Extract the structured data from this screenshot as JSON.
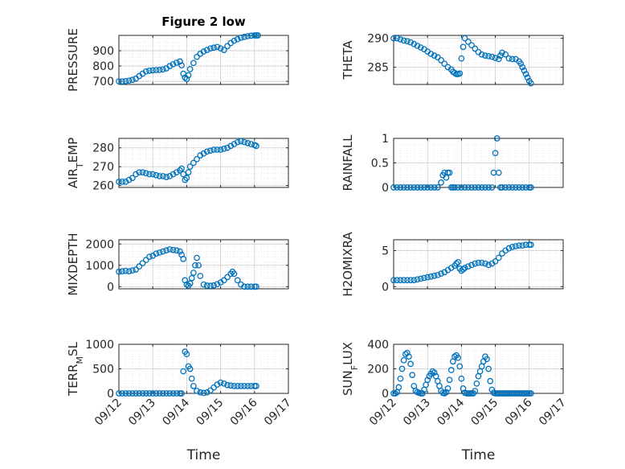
{
  "chart_data": [
    {
      "type": "scatter",
      "title": "Figure 2 low",
      "ylabel": "PRESSURE",
      "ylim": [
        680,
        1000
      ],
      "yticks": [
        700,
        800,
        900
      ],
      "xlim": [
        0,
        5
      ],
      "xticks": [
        "09/12",
        "09/13",
        "09/14",
        "09/15",
        "09/16",
        "09/17"
      ],
      "color": "#0072BD",
      "grid": true,
      "minor_grid": true,
      "x": [
        0.0,
        0.1,
        0.2,
        0.3,
        0.4,
        0.5,
        0.6,
        0.7,
        0.8,
        0.9,
        1.0,
        1.1,
        1.2,
        1.3,
        1.4,
        1.5,
        1.6,
        1.7,
        1.8,
        1.85,
        1.9,
        1.95,
        2.0,
        2.05,
        2.1,
        2.2,
        2.3,
        2.4,
        2.5,
        2.6,
        2.7,
        2.8,
        2.9,
        3.0,
        3.1,
        3.2,
        3.3,
        3.4,
        3.5,
        3.6,
        3.7,
        3.8,
        3.9,
        4.0,
        4.05,
        4.1
      ],
      "y": [
        700,
        700,
        702,
        705,
        710,
        718,
        735,
        750,
        765,
        770,
        772,
        774,
        775,
        778,
        785,
        800,
        812,
        822,
        830,
        805,
        750,
        725,
        715,
        740,
        780,
        820,
        860,
        880,
        895,
        905,
        915,
        920,
        925,
        915,
        905,
        930,
        950,
        965,
        975,
        985,
        990,
        995,
        998,
        1000,
        1000,
        1000
      ]
    },
    {
      "type": "scatter",
      "title": "",
      "ylabel": "THETA",
      "ylim": [
        282,
        290.5
      ],
      "yticks": [
        285,
        290
      ],
      "xlim": [
        0,
        5
      ],
      "xticks": [
        "09/12",
        "09/13",
        "09/14",
        "09/15",
        "09/16",
        "09/17"
      ],
      "color": "#0072BD",
      "grid": true,
      "minor_grid": true,
      "x": [
        0.0,
        0.1,
        0.2,
        0.3,
        0.4,
        0.5,
        0.6,
        0.7,
        0.8,
        0.9,
        1.0,
        1.1,
        1.2,
        1.3,
        1.4,
        1.5,
        1.6,
        1.7,
        1.75,
        1.8,
        1.85,
        1.9,
        1.95,
        2.0,
        2.05,
        2.1,
        2.2,
        2.3,
        2.4,
        2.5,
        2.6,
        2.7,
        2.8,
        2.9,
        3.0,
        3.1,
        3.15,
        3.2,
        3.3,
        3.4,
        3.5,
        3.6,
        3.7,
        3.75,
        3.8,
        3.85,
        3.9,
        3.95,
        4.0,
        4.05
      ],
      "y": [
        290,
        290,
        289.8,
        289.6,
        289.5,
        289.3,
        289.0,
        288.7,
        288.4,
        288.1,
        287.7,
        287.3,
        287.0,
        286.7,
        286.2,
        285.6,
        285.0,
        284.6,
        284.2,
        284.0,
        283.8,
        283.8,
        283.9,
        286.5,
        288.5,
        290.0,
        289.4,
        288.8,
        288.2,
        287.6,
        287.2,
        287.0,
        286.9,
        286.8,
        286.6,
        286.4,
        287.0,
        287.5,
        287.2,
        286.5,
        286.4,
        286.4,
        286.0,
        285.6,
        285.0,
        284.4,
        283.8,
        283.2,
        282.6,
        282.2
      ]
    },
    {
      "type": "scatter",
      "title": "",
      "ylabel": "AIR_T_EMP",
      "ylim": [
        259,
        285
      ],
      "yticks": [
        260,
        270,
        280
      ],
      "xlim": [
        0,
        5
      ],
      "xticks": [
        "09/12",
        "09/13",
        "09/14",
        "09/15",
        "09/16",
        "09/17"
      ],
      "color": "#0072BD",
      "grid": true,
      "minor_grid": true,
      "x": [
        0.0,
        0.1,
        0.2,
        0.3,
        0.4,
        0.5,
        0.6,
        0.7,
        0.8,
        0.9,
        1.0,
        1.1,
        1.2,
        1.3,
        1.4,
        1.5,
        1.6,
        1.7,
        1.8,
        1.85,
        1.9,
        1.95,
        2.0,
        2.05,
        2.1,
        2.2,
        2.3,
        2.4,
        2.5,
        2.6,
        2.7,
        2.8,
        2.9,
        3.0,
        3.1,
        3.2,
        3.3,
        3.4,
        3.5,
        3.6,
        3.7,
        3.8,
        3.9,
        4.0,
        4.05
      ],
      "y": [
        262,
        262,
        262,
        263,
        264,
        266,
        267,
        267,
        266.5,
        266,
        266,
        265.5,
        265,
        265,
        264.5,
        265,
        266,
        267,
        268,
        269,
        266,
        263,
        264,
        267,
        270,
        272,
        274,
        276,
        277,
        278,
        278.5,
        279,
        279,
        279,
        279.5,
        280,
        281,
        282,
        283,
        283.5,
        283,
        282.5,
        282,
        281.5,
        281
      ]
    },
    {
      "type": "scatter",
      "title": "",
      "ylabel": "RAINFALL",
      "ylim": [
        0,
        1
      ],
      "yticks": [
        0,
        0.5,
        1
      ],
      "xlim": [
        0,
        5
      ],
      "xticks": [
        "09/12",
        "09/13",
        "09/14",
        "09/15",
        "09/16",
        "09/17"
      ],
      "color": "#0072BD",
      "grid": true,
      "minor_grid": true,
      "x": [
        0.0,
        0.1,
        0.2,
        0.3,
        0.4,
        0.5,
        0.6,
        0.7,
        0.8,
        0.9,
        1.0,
        1.1,
        1.2,
        1.3,
        1.4,
        1.45,
        1.5,
        1.55,
        1.6,
        1.65,
        1.7,
        1.75,
        1.8,
        1.9,
        2.0,
        2.1,
        2.2,
        2.3,
        2.4,
        2.5,
        2.6,
        2.7,
        2.8,
        2.9,
        2.95,
        3.0,
        3.05,
        3.1,
        3.15,
        3.2,
        3.3,
        3.4,
        3.5,
        3.6,
        3.7,
        3.8,
        3.9,
        4.0,
        4.05
      ],
      "y": [
        0,
        0,
        0,
        0,
        0,
        0,
        0,
        0,
        0,
        0,
        0,
        0,
        0,
        0,
        0.1,
        0.25,
        0.3,
        0.2,
        0.3,
        0.3,
        0,
        0,
        0,
        0,
        0,
        0,
        0,
        0,
        0,
        0,
        0,
        0,
        0,
        0,
        0.3,
        0.7,
        1.0,
        0.3,
        0,
        0,
        0,
        0,
        0,
        0,
        0,
        0,
        0,
        0,
        0
      ]
    },
    {
      "type": "scatter",
      "title": "",
      "ylabel": "MIXDEPTH",
      "ylim": [
        -100,
        2200
      ],
      "yticks": [
        0,
        1000,
        2000
      ],
      "xlim": [
        0,
        5
      ],
      "xticks": [
        "09/12",
        "09/13",
        "09/14",
        "09/15",
        "09/16",
        "09/17"
      ],
      "color": "#0072BD",
      "grid": true,
      "minor_grid": true,
      "x": [
        0.0,
        0.1,
        0.2,
        0.3,
        0.4,
        0.5,
        0.6,
        0.7,
        0.8,
        0.9,
        1.0,
        1.1,
        1.2,
        1.3,
        1.4,
        1.5,
        1.6,
        1.7,
        1.8,
        1.85,
        1.9,
        1.95,
        2.0,
        2.05,
        2.1,
        2.15,
        2.2,
        2.25,
        2.3,
        2.35,
        2.4,
        2.5,
        2.6,
        2.7,
        2.8,
        2.9,
        3.0,
        3.1,
        3.2,
        3.3,
        3.35,
        3.4,
        3.5,
        3.6,
        3.7,
        3.8,
        3.9,
        4.0,
        4.05
      ],
      "y": [
        700,
        720,
        740,
        720,
        760,
        800,
        950,
        1100,
        1250,
        1400,
        1450,
        1550,
        1600,
        1650,
        1700,
        1750,
        1720,
        1700,
        1650,
        1500,
        1300,
        300,
        100,
        50,
        150,
        400,
        650,
        1000,
        1350,
        1000,
        500,
        100,
        50,
        40,
        60,
        120,
        200,
        300,
        450,
        600,
        700,
        600,
        300,
        100,
        0,
        0,
        0,
        0,
        0
      ]
    },
    {
      "type": "scatter",
      "title": "",
      "ylabel": "H2OMIXRA",
      "ylim": [
        -0.3,
        6.5
      ],
      "yticks": [
        0,
        5
      ],
      "xlim": [
        0,
        5
      ],
      "xticks": [
        "09/12",
        "09/13",
        "09/14",
        "09/15",
        "09/16",
        "09/17"
      ],
      "color": "#0072BD",
      "grid": true,
      "minor_grid": true,
      "x": [
        0.0,
        0.1,
        0.2,
        0.3,
        0.4,
        0.5,
        0.6,
        0.7,
        0.8,
        0.9,
        1.0,
        1.1,
        1.2,
        1.3,
        1.4,
        1.5,
        1.6,
        1.7,
        1.8,
        1.85,
        1.9,
        1.95,
        2.0,
        2.05,
        2.1,
        2.2,
        2.3,
        2.4,
        2.5,
        2.6,
        2.7,
        2.8,
        2.9,
        3.0,
        3.1,
        3.2,
        3.3,
        3.4,
        3.5,
        3.6,
        3.7,
        3.8,
        3.9,
        4.0,
        4.05
      ],
      "y": [
        0.9,
        0.9,
        0.9,
        0.9,
        0.9,
        0.9,
        0.9,
        1.0,
        1.1,
        1.2,
        1.3,
        1.4,
        1.5,
        1.6,
        1.8,
        2.0,
        2.3,
        2.6,
        2.9,
        3.2,
        3.4,
        2.5,
        2.2,
        2.4,
        2.6,
        2.8,
        3.0,
        3.2,
        3.3,
        3.3,
        3.2,
        3.0,
        3.2,
        3.5,
        4.0,
        4.6,
        5.0,
        5.3,
        5.5,
        5.6,
        5.7,
        5.7,
        5.8,
        5.8,
        5.8
      ]
    },
    {
      "type": "scatter",
      "title": "",
      "ylabel": "TERR_M_SL",
      "ylim": [
        0,
        1000
      ],
      "yticks": [
        0,
        500,
        1000
      ],
      "xlim": [
        0,
        5
      ],
      "xticks": [
        "09/12",
        "09/13",
        "09/14",
        "09/15",
        "09/16",
        "09/17"
      ],
      "xlabel": "Time",
      "color": "#0072BD",
      "grid": true,
      "minor_grid": true,
      "x": [
        0.0,
        0.1,
        0.2,
        0.3,
        0.4,
        0.5,
        0.6,
        0.7,
        0.8,
        0.9,
        1.0,
        1.1,
        1.2,
        1.3,
        1.4,
        1.5,
        1.6,
        1.7,
        1.8,
        1.85,
        1.9,
        1.95,
        2.0,
        2.05,
        2.1,
        2.15,
        2.2,
        2.3,
        2.4,
        2.5,
        2.6,
        2.7,
        2.8,
        2.9,
        3.0,
        3.1,
        3.2,
        3.3,
        3.4,
        3.5,
        3.6,
        3.7,
        3.8,
        3.9,
        4.0,
        4.05
      ],
      "y": [
        0,
        0,
        0,
        0,
        0,
        0,
        0,
        0,
        0,
        0,
        0,
        0,
        0,
        0,
        0,
        0,
        0,
        0,
        0,
        0,
        450,
        850,
        800,
        550,
        500,
        300,
        150,
        50,
        20,
        10,
        20,
        60,
        120,
        180,
        220,
        200,
        170,
        160,
        150,
        150,
        150,
        150,
        150,
        150,
        150,
        150
      ]
    },
    {
      "type": "scatter",
      "title": "",
      "ylabel": "SUN_F_LUX",
      "ylim": [
        0,
        400
      ],
      "yticks": [
        0,
        200,
        400
      ],
      "xlim": [
        0,
        5
      ],
      "xticks": [
        "09/12",
        "09/13",
        "09/14",
        "09/15",
        "09/16",
        "09/17"
      ],
      "xlabel": "Time",
      "color": "#0072BD",
      "grid": true,
      "minor_grid": true,
      "x": [
        0.0,
        0.05,
        0.1,
        0.15,
        0.2,
        0.25,
        0.3,
        0.35,
        0.4,
        0.45,
        0.5,
        0.55,
        0.6,
        0.65,
        0.7,
        0.75,
        0.8,
        0.85,
        0.9,
        0.95,
        1.0,
        1.05,
        1.1,
        1.15,
        1.2,
        1.25,
        1.3,
        1.35,
        1.4,
        1.45,
        1.5,
        1.55,
        1.6,
        1.65,
        1.7,
        1.75,
        1.8,
        1.85,
        1.9,
        1.95,
        2.0,
        2.05,
        2.1,
        2.15,
        2.2,
        2.25,
        2.3,
        2.35,
        2.4,
        2.45,
        2.5,
        2.55,
        2.6,
        2.65,
        2.7,
        2.75,
        2.8,
        2.85,
        2.9,
        2.95,
        3.0,
        3.05,
        3.1,
        3.15,
        3.2,
        3.25,
        3.3,
        3.35,
        3.4,
        3.45,
        3.5,
        3.55,
        3.6,
        3.65,
        3.7,
        3.75,
        3.8,
        3.85,
        3.9,
        3.95,
        4.0,
        4.05
      ],
      "y": [
        0,
        0,
        10,
        50,
        120,
        200,
        270,
        320,
        330,
        300,
        240,
        150,
        60,
        20,
        10,
        5,
        0,
        0,
        30,
        70,
        110,
        140,
        160,
        180,
        170,
        140,
        100,
        60,
        20,
        5,
        0,
        10,
        40,
        110,
        190,
        260,
        300,
        310,
        290,
        220,
        120,
        40,
        5,
        0,
        0,
        0,
        0,
        0,
        20,
        80,
        140,
        180,
        220,
        260,
        300,
        280,
        200,
        100,
        30,
        5,
        0,
        0,
        0,
        0,
        0,
        0,
        0,
        0,
        0,
        0,
        0,
        0,
        0,
        0,
        0,
        0,
        0,
        0,
        0,
        0,
        0,
        0
      ]
    }
  ]
}
